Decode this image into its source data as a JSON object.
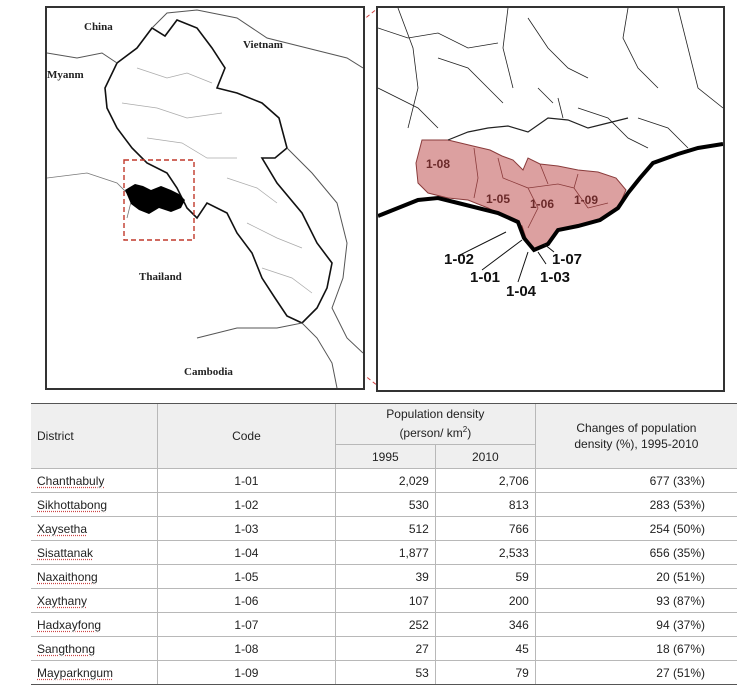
{
  "map_labels": {
    "china": "China",
    "vietnam": "Vietnam",
    "myanmar": "Myanm",
    "thailand": "Thailand",
    "cambodia": "Cambodia"
  },
  "district_codes": {
    "c101": "1-01",
    "c102": "1-02",
    "c103": "1-03",
    "c104": "1-04",
    "c105": "1-05",
    "c106": "1-06",
    "c107": "1-07",
    "c108": "1-08",
    "c109": "1-09"
  },
  "colors": {
    "study_area_fill": "#dca0a0",
    "study_area_stroke": "#8a3b3b",
    "extent_box": "#c0392b",
    "border": "#000000"
  },
  "table": {
    "headers": {
      "district": "District",
      "code": "Code",
      "density_line1": "Population density",
      "density_line2": "(person/ km",
      "density_sup": "2",
      "density_close": ")",
      "y1995": "1995",
      "y2010": "2010",
      "change_line1": "Changes of population",
      "change_line2": "density (%), 1995-2010"
    },
    "rows": [
      {
        "district": "Chanthabuly",
        "code": "1-01",
        "d1995": "2,029",
        "d2010": "2,706",
        "change": "677 (33%)"
      },
      {
        "district": "Sikhottabong",
        "code": "1-02",
        "d1995": "530",
        "d2010": "813",
        "change": "283 (53%)"
      },
      {
        "district": "Xaysetha",
        "code": "1-03",
        "d1995": "512",
        "d2010": "766",
        "change": "254 (50%)"
      },
      {
        "district": "Sisattanak",
        "code": "1-04",
        "d1995": "1,877",
        "d2010": "2,533",
        "change": "656 (35%)"
      },
      {
        "district": "Naxaithong",
        "code": "1-05",
        "d1995": "39",
        "d2010": "59",
        "change": "20 (51%)"
      },
      {
        "district": "Xaythany",
        "code": "1-06",
        "d1995": "107",
        "d2010": "200",
        "change": "93 (87%)"
      },
      {
        "district": "Hadxayfong",
        "code": "1-07",
        "d1995": "252",
        "d2010": "346",
        "change": "94 (37%)"
      },
      {
        "district": "Sangthong",
        "code": "1-08",
        "d1995": "27",
        "d2010": "45",
        "change": "18 (67%)"
      },
      {
        "district": "Mayparkngum",
        "code": "1-09",
        "d1995": "53",
        "d2010": "79",
        "change": "27 (51%)"
      }
    ]
  }
}
